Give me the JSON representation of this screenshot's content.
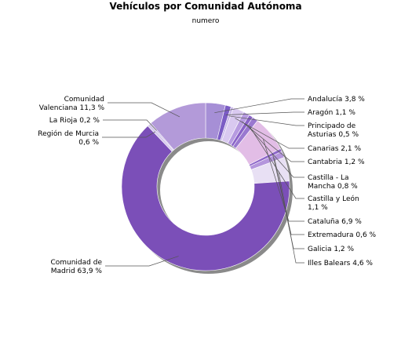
{
  "chart_data": {
    "type": "pie",
    "donut": true,
    "title": "Vehículos por Comunidad Autónoma",
    "subtitle": "numero",
    "legend": "none",
    "slices": [
      {
        "name": "Andalucía",
        "value": 3.8,
        "label": [
          "Andalucía 3,8 %"
        ],
        "color": "#a68fd6"
      },
      {
        "name": "Aragón",
        "value": 1.1,
        "label": [
          "Aragón 1,1 %"
        ],
        "color": "#7b5cc4"
      },
      {
        "name": "Principado de Asturias",
        "value": 0.5,
        "label": [
          "Principado de",
          "Asturias 0,5 %"
        ],
        "color": "#c9b8e8"
      },
      {
        "name": "Canarias",
        "value": 2.1,
        "label": [
          "Canarias 2,1 %"
        ],
        "color": "#d9c9f0"
      },
      {
        "name": "Cantabria",
        "value": 1.2,
        "label": [
          "Cantabria 1,2 %"
        ],
        "color": "#b79be0"
      },
      {
        "name": "Castilla - La Mancha",
        "value": 0.8,
        "label": [
          "Castilla - La",
          "Mancha 0,8 %"
        ],
        "color": "#8a63c8"
      },
      {
        "name": "Castilla y León",
        "value": 1.1,
        "label": [
          "Castilla y León",
          "1,1 %"
        ],
        "color": "#9a78d0"
      },
      {
        "name": "Cataluña",
        "value": 6.9,
        "label": [
          "Cataluña 6,9 %"
        ],
        "color": "#e2bde6"
      },
      {
        "name": "Extremadura",
        "value": 0.6,
        "label": [
          "Extremadura 0,6 %"
        ],
        "color": "#8e67c9"
      },
      {
        "name": "Galicia",
        "value": 1.2,
        "label": [
          "Galicia 1,2 %"
        ],
        "color": "#b496dc"
      },
      {
        "name": "Illes Balears",
        "value": 4.6,
        "label": [
          "Illes Balears 4,6 %"
        ],
        "color": "#e8e0f4"
      },
      {
        "name": "Comunidad de Madrid",
        "value": 63.9,
        "label": [
          "Comunidad de",
          "Madrid 63,9 %"
        ],
        "color": "#7b4fb8"
      },
      {
        "name": "Región de Murcia",
        "value": 0.6,
        "label": [
          "Región de Murcia",
          "0,6 %"
        ],
        "color": "#d5c8ec"
      },
      {
        "name": "La Rioja",
        "value": 0.2,
        "label": [
          "La Rioja 0,2 %"
        ],
        "color": "#9f86cf"
      },
      {
        "name": "Comunidad Valenciana",
        "value": 11.3,
        "label": [
          "Comunidad",
          "Valenciana 11,3 %"
        ],
        "color": "#b39ad9"
      }
    ]
  }
}
